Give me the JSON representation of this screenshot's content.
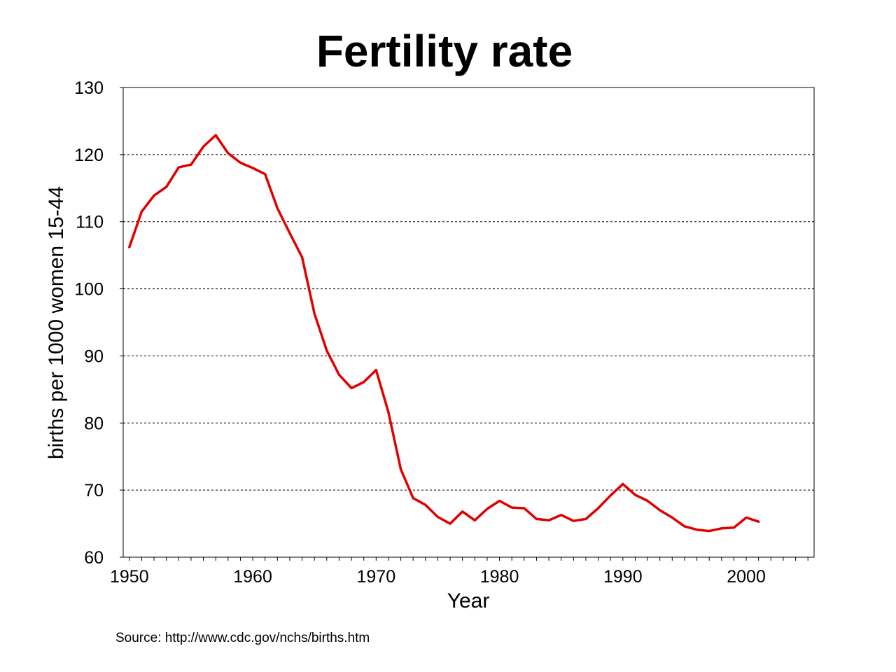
{
  "colors": {
    "line": "#e00000",
    "grid": "#000000",
    "axis": "#000000",
    "background": "#ffffff"
  },
  "chart_data": {
    "type": "line",
    "title": "Fertility rate",
    "xlabel": "Year",
    "ylabel": "births per 1000 women 15-44",
    "xlim": [
      1949.5,
      2005.5
    ],
    "ylim": [
      60,
      130
    ],
    "x_ticks": [
      1950,
      1960,
      1970,
      1980,
      1990,
      2000
    ],
    "y_ticks": [
      60,
      70,
      80,
      90,
      100,
      110,
      120,
      130
    ],
    "grid": "horizontal dashed",
    "legend": "none",
    "source": "Source: http://www.cdc.gov/nchs/births.htm",
    "series": [
      {
        "x": [
          1950,
          1951,
          1952,
          1953,
          1954,
          1955,
          1956,
          1957,
          1958,
          1959,
          1960,
          1961,
          1962,
          1963,
          1964,
          1965,
          1966,
          1967,
          1968,
          1969,
          1970,
          1971,
          1972,
          1973,
          1974,
          1975,
          1976,
          1977,
          1978,
          1979,
          1980,
          1981,
          1982,
          1983,
          1984,
          1985,
          1986,
          1987,
          1988,
          1989,
          1990,
          1991,
          1992,
          1993,
          1994,
          1995,
          1996,
          1997,
          1998,
          1999,
          2000,
          2001
        ],
        "y": [
          106.2,
          111.5,
          113.9,
          115.2,
          118.1,
          118.5,
          121.2,
          122.9,
          120.2,
          118.8,
          118.0,
          117.1,
          112.0,
          108.3,
          104.7,
          96.3,
          90.8,
          87.2,
          85.2,
          86.1,
          87.9,
          81.6,
          73.1,
          68.8,
          67.8,
          66.0,
          65.0,
          66.8,
          65.5,
          67.2,
          68.4,
          67.4,
          67.3,
          65.7,
          65.5,
          66.3,
          65.4,
          65.7,
          67.3,
          69.2,
          70.9,
          69.3,
          68.4,
          67.0,
          65.9,
          64.6,
          64.1,
          63.9,
          64.3,
          64.4,
          65.9,
          65.3
        ]
      }
    ]
  }
}
